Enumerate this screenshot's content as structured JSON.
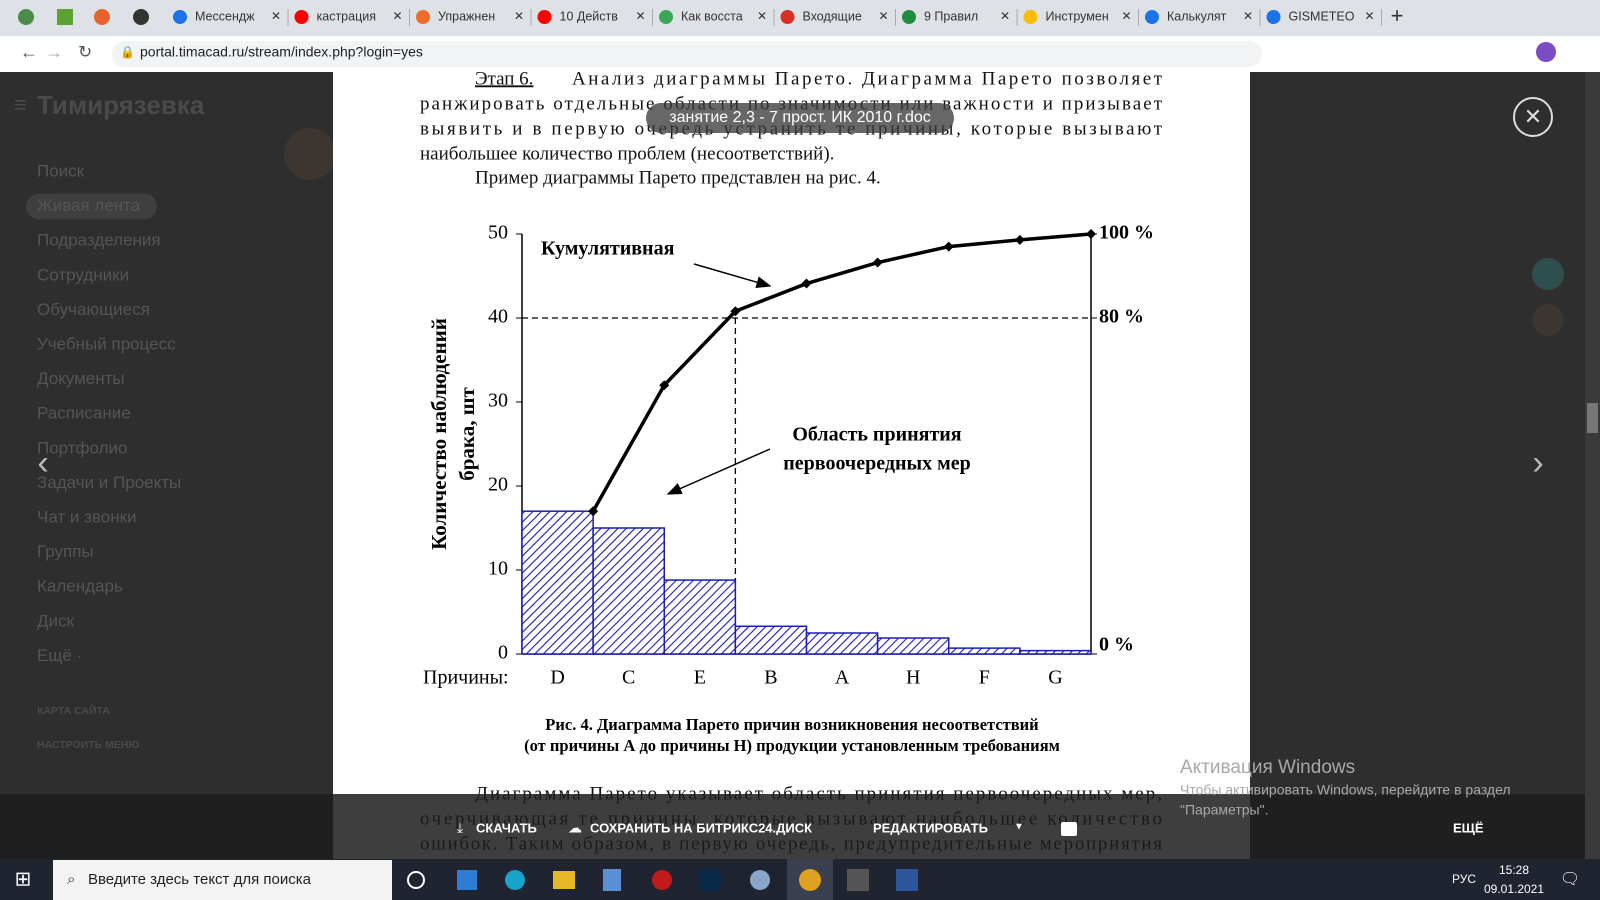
{
  "browser": {
    "tabs": [
      "Мессендж",
      "кастрация",
      "Упражнен",
      "10 Действ",
      "Как восста",
      "Входящие",
      "9 Правил",
      "Инструмен",
      "Калькулят",
      "GISMETEO"
    ],
    "url": "portal.timacad.ru/stream/index.php?login=yes"
  },
  "sidebar": {
    "logo": "Тимирязевка",
    "items": [
      "Поиск",
      "Живая лента",
      "Подразделения",
      "Сотрудники",
      "Обучающиеся",
      "Учебный процесс",
      "Документы",
      "Расписание",
      "Портфолио",
      "Задачи и Проекты",
      "Чат и звонки",
      "Группы",
      "Календарь",
      "Диск",
      "Ещё ·"
    ],
    "links": [
      "КАРТА САЙТА",
      "НАСТРОИТЬ МЕНЮ"
    ]
  },
  "viewer": {
    "file_name": "занятие 2,3 - 7 прост. ИК 2010 г.doc",
    "toolbar": [
      "СКАЧАТЬ",
      "СОХРАНИТЬ НА БИТРИКС24.ДИСК",
      "РЕДАКТИРОВАТЬ",
      "ЕЩЁ"
    ]
  },
  "document": {
    "stage": "Этап 6.",
    "top_lines": [
      "Анализ диаграммы Парето. Диаграмма Парето позволяет",
      "ранжировать отдельные области по значимости или важности и призывает",
      "выявить и в первую очередь устранить те причины, которые вызывают",
      "наибольшее количество проблем (несоответствий)."
    ],
    "intro": "Пример диаграммы Парето представлен на рис. 4.",
    "bottom_lines": [
      "Диаграмма Парето указывает область принятия первоочередных мер,",
      "очерчивающая те причины, которые вызывают наибольшее количество",
      "ошибок. Таким образом, в первую очередь, предупредительные мероприятия"
    ]
  },
  "chart_data": {
    "type": "bar",
    "x_prefix": "Причины:",
    "categories": [
      "D",
      "C",
      "E",
      "B",
      "A",
      "H",
      "F",
      "G"
    ],
    "values": [
      17,
      15,
      8.8,
      3.3,
      2.5,
      1.9,
      0.7,
      0.4
    ],
    "color": "#1c1cb0",
    "line": {
      "values": [
        17,
        32,
        40.8,
        44.1,
        46.6,
        48.5,
        49.3,
        50
      ],
      "color": "#000000"
    },
    "ylabel": [
      "Количество наблюдений",
      "брака, шт"
    ],
    "ylim": [
      0,
      50
    ],
    "yticks": [
      0,
      10,
      20,
      30,
      40,
      50
    ],
    "y2lim": [
      0,
      50
    ],
    "y2ticks": [
      {
        "value": 0,
        "label": "0 %"
      },
      {
        "value": 40,
        "label": "80 %"
      },
      {
        "value": 50,
        "label": "100 %"
      }
    ],
    "annotations": [
      "Кумулятивная",
      "Область принятия",
      "первоочередных мер"
    ],
    "caption": [
      "Рис. 4. Диаграмма Парето причин возникновения несоответствий",
      "(от причины А до причины Н) продукции установленным требованиям"
    ]
  },
  "watermark": [
    "Активация Windows",
    "Чтобы активировать Windows, перейдите в раздел",
    "\"Параметры\"."
  ],
  "taskbar": {
    "search": "Введите здесь текст для поиска",
    "language": "РУС",
    "time": "15:28",
    "date": "09.01.2021"
  }
}
